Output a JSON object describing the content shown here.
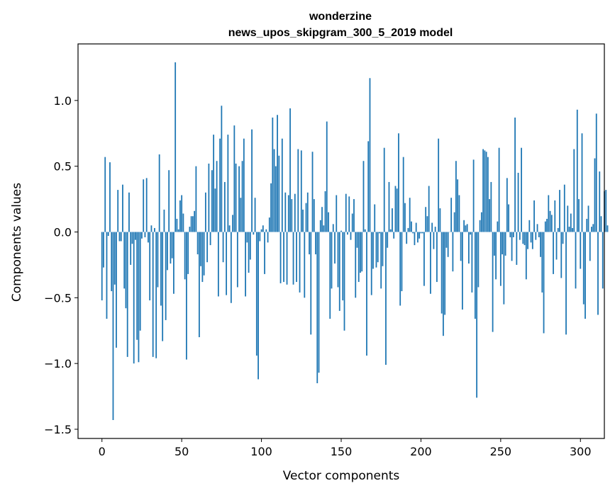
{
  "chart_data": {
    "type": "bar",
    "title_line1": "wonderzine",
    "title_line2": "news_upos_skipgram_300_5_2019 model",
    "xlabel": "Vector components",
    "ylabel": "Components values",
    "xlim": [
      -15,
      315
    ],
    "ylim": [
      -1.57,
      1.43
    ],
    "xticks": [
      0,
      50,
      100,
      150,
      200,
      250,
      300
    ],
    "yticks": [
      -1.5,
      -1.0,
      -0.5,
      0.0,
      0.5,
      1.0
    ],
    "ytick_labels": [
      "−1.5",
      "−1.0",
      "−0.5",
      "0.0",
      "0.5",
      "1.0"
    ],
    "bar_color": "#1f77b4",
    "grid": false,
    "values": [
      -0.52,
      -0.27,
      0.57,
      -0.66,
      -0.03,
      0.53,
      -0.45,
      -1.43,
      -0.4,
      -0.88,
      0.32,
      -0.07,
      -0.07,
      0.36,
      -0.43,
      -0.58,
      -0.95,
      0.3,
      -0.25,
      -0.09,
      -1.0,
      -0.06,
      -0.82,
      -0.99,
      -0.75,
      -0.05,
      0.4,
      -0.04,
      0.41,
      -0.08,
      -0.52,
      0.05,
      -0.95,
      0.03,
      -0.96,
      -0.42,
      0.59,
      -0.56,
      -0.83,
      0.17,
      -0.67,
      -0.29,
      0.47,
      -0.24,
      -0.2,
      -0.47,
      1.29,
      0.1,
      0.02,
      0.24,
      0.28,
      0.14,
      -0.36,
      -0.97,
      -0.32,
      0.04,
      0.12,
      0.12,
      0.16,
      0.5,
      -0.17,
      -0.8,
      -0.26,
      -0.38,
      -0.33,
      0.3,
      -0.23,
      0.52,
      -0.1,
      0.47,
      0.74,
      0.33,
      0.54,
      -0.49,
      0.71,
      0.96,
      -0.23,
      0.38,
      -0.48,
      0.74,
      0.05,
      -0.54,
      0.13,
      0.81,
      0.52,
      -0.42,
      0.5,
      0.26,
      0.54,
      0.71,
      -0.49,
      -0.08,
      -0.31,
      -0.21,
      0.78,
      -0.02,
      0.26,
      -0.94,
      -1.12,
      -0.07,
      0.02,
      0.05,
      -0.32,
      0.02,
      -0.08,
      0.11,
      0.37,
      0.87,
      0.63,
      0.5,
      0.89,
      0.58,
      -0.39,
      0.71,
      -0.38,
      0.3,
      -0.4,
      0.28,
      0.94,
      0.25,
      -0.4,
      0.29,
      -0.38,
      0.63,
      -0.46,
      0.62,
      0.17,
      -0.5,
      0.22,
      0.3,
      -0.17,
      -0.78,
      0.61,
      0.25,
      -0.17,
      -1.15,
      -1.07,
      0.09,
      0.19,
      0.05,
      0.31,
      0.84,
      0.15,
      -0.66,
      -0.43,
      0.06,
      -0.24,
      0.28,
      -0.42,
      -0.6,
      0.01,
      -0.52,
      -0.75,
      0.29,
      -0.02,
      0.27,
      -0.06,
      0.14,
      0.25,
      -0.5,
      -0.12,
      -0.38,
      -0.31,
      -0.3,
      0.54,
      0.02,
      -0.94,
      0.69,
      1.17,
      -0.48,
      -0.28,
      0.21,
      -0.27,
      -0.23,
      -0.01,
      -0.43,
      -0.26,
      0.64,
      -1.01,
      -0.12,
      0.38,
      0.02,
      0.18,
      -0.05,
      0.35,
      0.33,
      0.75,
      -0.56,
      -0.45,
      0.57,
      0.22,
      -0.09,
      0.03,
      0.26,
      0.08,
      -0.01,
      -0.1,
      0.07,
      -0.08,
      -0.05,
      -0.01,
      -0.01,
      -0.41,
      0.19,
      0.12,
      0.35,
      -0.47,
      0.07,
      -0.13,
      0.04,
      -0.38,
      0.71,
      0.18,
      -0.62,
      -0.79,
      -0.63,
      -0.12,
      -0.19,
      0.0,
      0.26,
      -0.3,
      0.15,
      0.54,
      0.4,
      0.28,
      -0.22,
      -0.59,
      0.09,
      0.05,
      0.06,
      -0.24,
      -0.02,
      -0.46,
      0.55,
      -0.66,
      -1.26,
      -0.42,
      0.09,
      0.15,
      0.63,
      0.62,
      0.61,
      0.57,
      0.25,
      0.38,
      -0.76,
      -0.18,
      -0.36,
      0.08,
      0.64,
      -0.41,
      -0.17,
      -0.55,
      -0.18,
      0.41,
      0.21,
      -0.04,
      -0.22,
      -0.04,
      0.87,
      -0.25,
      0.45,
      -0.06,
      0.64,
      -0.09,
      -0.1,
      -0.36,
      -0.13,
      0.09,
      -0.08,
      -0.13,
      0.24,
      -0.06,
      0.06,
      -0.04,
      -0.19,
      -0.46,
      -0.77,
      0.08,
      0.1,
      0.28,
      0.16,
      0.13,
      -0.32,
      0.24,
      -0.21,
      0.03,
      0.32,
      -0.35,
      -0.09,
      0.36,
      -0.78,
      0.2,
      0.04,
      0.14,
      0.03,
      0.63,
      -0.43,
      0.93,
      0.25,
      -0.28,
      0.75,
      -0.55,
      -0.66,
      0.1,
      0.2,
      -0.22,
      0.04,
      0.06,
      0.56,
      0.9,
      -0.63,
      0.46,
      0.12,
      -0.43,
      0.31,
      0.32,
      0.05
    ]
  }
}
